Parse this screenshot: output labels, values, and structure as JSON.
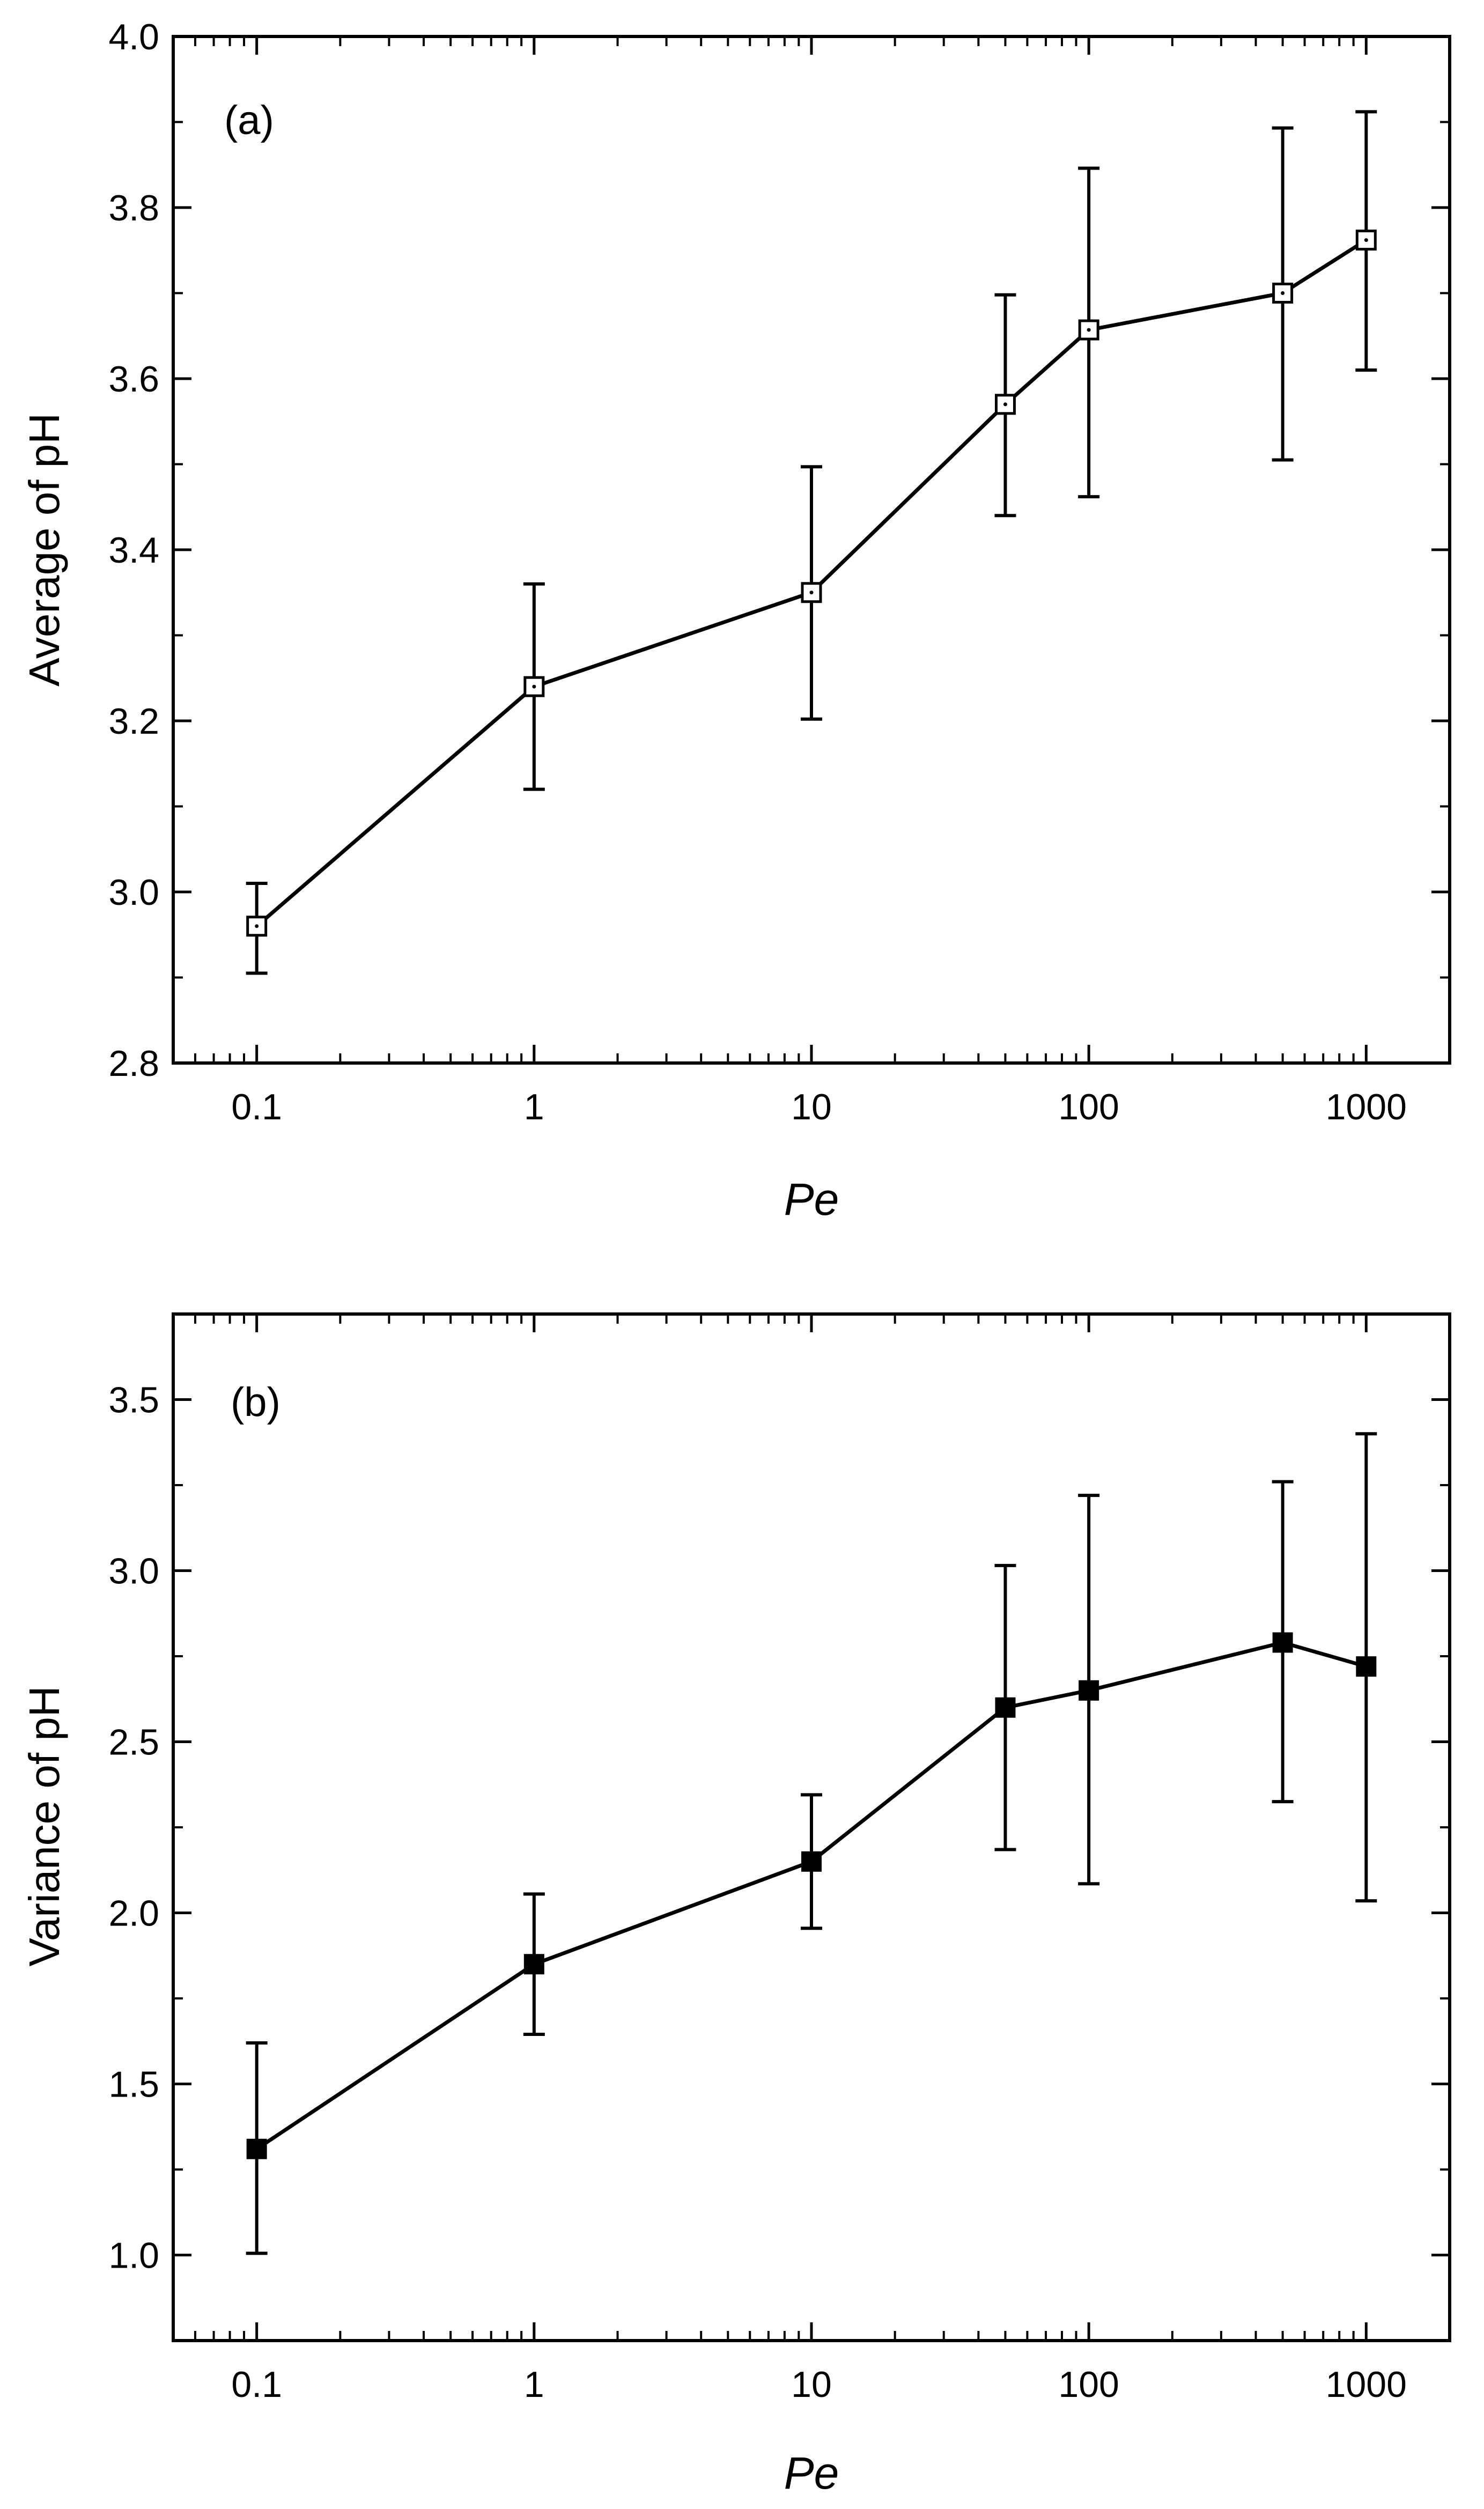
{
  "chart_data": [
    {
      "type": "line",
      "panel_label": "(a)",
      "title": "",
      "xlabel": "Pe",
      "ylabel": "Average of pH",
      "xscale": "log",
      "xlim": [
        0.05,
        2000
      ],
      "ylim": [
        2.8,
        4.0
      ],
      "xticks": [
        0.1,
        1,
        10,
        100,
        1000
      ],
      "xtick_labels": [
        "0.1",
        "1",
        "10",
        "100",
        "1000"
      ],
      "yticks": [
        2.8,
        3.0,
        3.2,
        3.4,
        3.6,
        3.8,
        4.0
      ],
      "ytick_labels": [
        "2.8",
        "3.0",
        "3.2",
        "3.4",
        "3.6",
        "3.8",
        "4.0"
      ],
      "marker": "open-square",
      "grid": false,
      "series": [
        {
          "name": "Average of pH",
          "x": [
            0.1,
            1,
            10,
            50,
            100,
            500,
            1000
          ],
          "y": [
            2.96,
            3.24,
            3.35,
            3.57,
            3.657,
            3.7,
            3.762
          ],
          "err_lower": [
            2.905,
            3.12,
            3.202,
            3.44,
            3.462,
            3.505,
            3.61
          ],
          "err_upper": [
            3.01,
            3.36,
            3.497,
            3.698,
            3.846,
            3.893,
            3.912
          ]
        }
      ]
    },
    {
      "type": "line",
      "panel_label": "(b)",
      "title": "",
      "xlabel": "Pe",
      "ylabel": "Variance of pH",
      "xscale": "log",
      "xlim": [
        0.05,
        2000
      ],
      "ylim": [
        0.75,
        3.75
      ],
      "xticks": [
        0.1,
        1,
        10,
        100,
        1000
      ],
      "xtick_labels": [
        "0.1",
        "1",
        "10",
        "100",
        "1000"
      ],
      "yticks": [
        1.0,
        1.5,
        2.0,
        2.5,
        3.0,
        3.5
      ],
      "ytick_labels": [
        "1.0",
        "1.5",
        "2.0",
        "2.5",
        "3.0",
        "3.5"
      ],
      "marker": "filled-square",
      "grid": false,
      "series": [
        {
          "name": "Variance of pH",
          "x": [
            0.1,
            1,
            10,
            50,
            100,
            500,
            1000
          ],
          "y": [
            1.31,
            1.85,
            2.15,
            2.6,
            2.65,
            2.79,
            2.72
          ],
          "err_lower": [
            1.005,
            1.645,
            1.955,
            2.185,
            2.085,
            2.325,
            2.035
          ],
          "err_upper": [
            1.62,
            2.055,
            2.345,
            3.015,
            3.22,
            3.26,
            3.4
          ]
        }
      ]
    }
  ]
}
